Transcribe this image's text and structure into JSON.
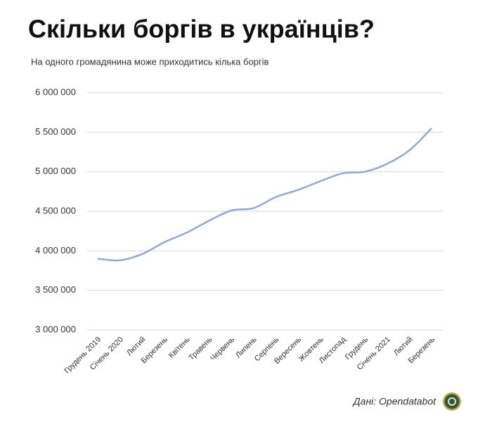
{
  "chart_data": {
    "type": "line",
    "title": "Скільки боргів в українців?",
    "subtitle": "На одного громадянина може приходитись кілька боргів",
    "source": "Дані: Opendatabot",
    "categories": [
      "Грудень 2019",
      "Січень 2020",
      "Лютий",
      "Березень",
      "Квітень",
      "Травень",
      "Червень",
      "Липень",
      "Серпень",
      "Вересень",
      "Жовтень",
      "Листопад",
      "Грудень",
      "Січень 2021",
      "Лютий",
      "Березень"
    ],
    "values": [
      3900000,
      3880000,
      3960000,
      4110000,
      4230000,
      4380000,
      4510000,
      4540000,
      4680000,
      4770000,
      4880000,
      4980000,
      5000000,
      5100000,
      5270000,
      5550000
    ],
    "color": "#8eaad8",
    "ylim": [
      3000000,
      6000000
    ],
    "yticks": [
      {
        "value": 3000000,
        "label": "3 000 000"
      },
      {
        "value": 3500000,
        "label": "3 500 000"
      },
      {
        "value": 4000000,
        "label": "4 000 000"
      },
      {
        "value": 4500000,
        "label": "4 500 000"
      },
      {
        "value": 5000000,
        "label": "5 000 000"
      },
      {
        "value": 5500000,
        "label": "5 500 000"
      },
      {
        "value": 6000000,
        "label": "6 000 000"
      }
    ],
    "grid": true
  }
}
